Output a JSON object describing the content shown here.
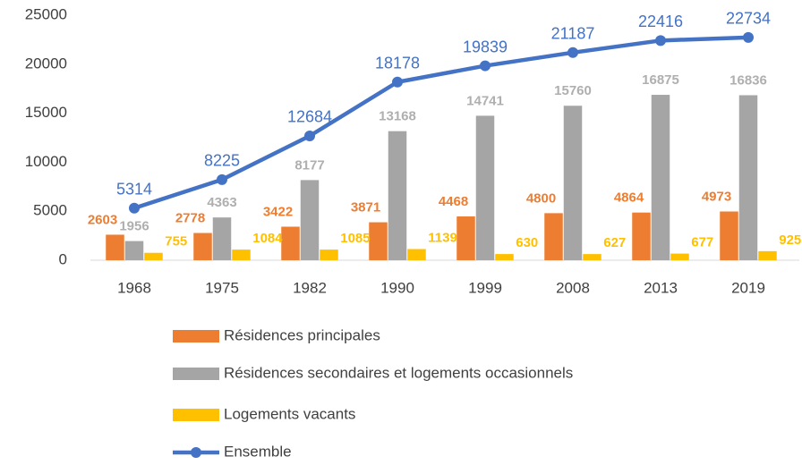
{
  "chart_data": {
    "type": "combo",
    "categories": [
      "1968",
      "1975",
      "1982",
      "1990",
      "1999",
      "2008",
      "2013",
      "2019"
    ],
    "ylim": [
      0,
      25000
    ],
    "yticks": [
      0,
      5000,
      10000,
      15000,
      20000,
      25000
    ],
    "series": [
      {
        "name": "Résidences principales",
        "type": "bar",
        "color": "#ED7D31",
        "values": [
          2603,
          2778,
          3422,
          3871,
          4468,
          4800,
          4864,
          4973
        ]
      },
      {
        "name": "Résidences secondaires et logements occasionnels",
        "type": "bar",
        "color": "#A5A5A5",
        "values": [
          1956,
          4363,
          8177,
          13168,
          14741,
          15760,
          16875,
          16836
        ]
      },
      {
        "name": "Logements vacants",
        "type": "bar",
        "color": "#FFC000",
        "values": [
          755,
          1084,
          1085,
          1139,
          630,
          627,
          677,
          925
        ]
      },
      {
        "name": "Ensemble",
        "type": "line",
        "color": "#4472C4",
        "values": [
          5314,
          8225,
          12684,
          18178,
          19839,
          21187,
          22416,
          22734
        ]
      }
    ]
  }
}
